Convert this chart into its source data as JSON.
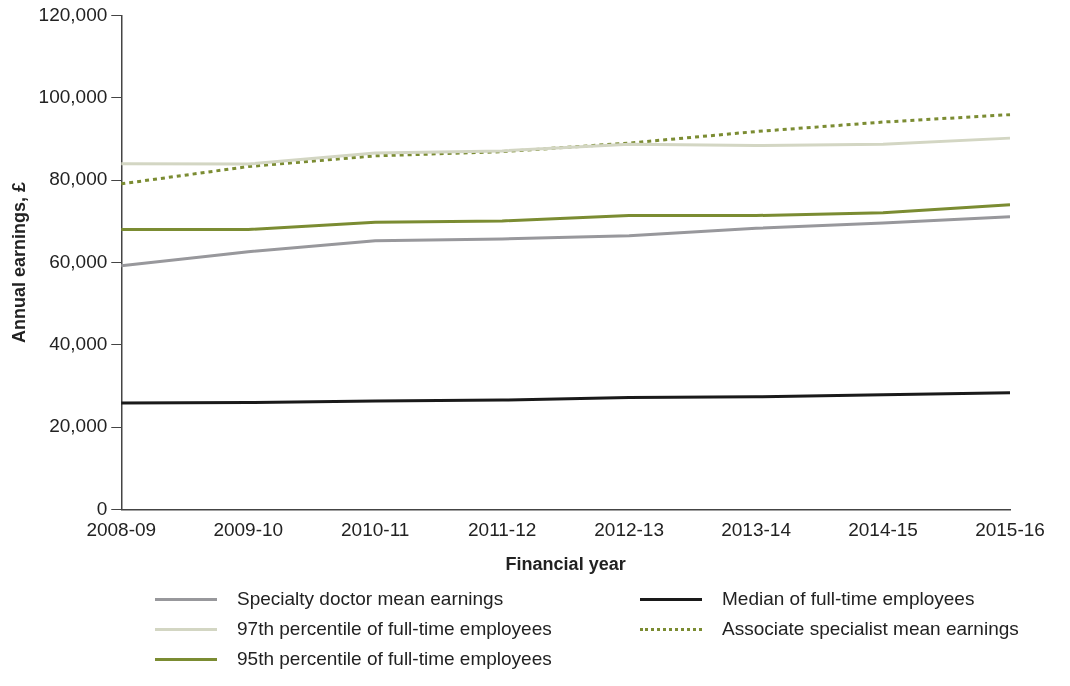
{
  "chart_data": {
    "type": "line",
    "xlabel": "Financial year",
    "ylabel": "Annual earnings, £",
    "categories": [
      "2008-09",
      "2009-10",
      "2010-11",
      "2011-12",
      "2012-13",
      "2013-14",
      "2014-15",
      "2015-16"
    ],
    "series": [
      {
        "name": "Specialty doctor mean earnings",
        "color": "#98989c",
        "values": [
          59200,
          62600,
          65300,
          65700,
          66500,
          68300,
          69600,
          71100
        ]
      },
      {
        "name": "97th percentile of full-time employees",
        "color": "#d3d6c3",
        "values": [
          84000,
          83900,
          86600,
          87100,
          88700,
          88400,
          88700,
          90200
        ]
      },
      {
        "name": "95th percentile of full-time employees",
        "color": "#7b8c32",
        "values": [
          68000,
          68000,
          69800,
          70100,
          71400,
          71400,
          72100,
          74000
        ]
      },
      {
        "name": "Median of full-time employees",
        "color": "#1a1a1a",
        "values": [
          25900,
          26000,
          26400,
          26600,
          27200,
          27400,
          27900,
          28400
        ]
      },
      {
        "name": "Associate specialist mean earnings",
        "color": "#7b8c32",
        "line_style": "dotted",
        "values": [
          79100,
          83300,
          85900,
          86900,
          89000,
          91800,
          94100,
          95900
        ]
      }
    ],
    "ylim": [
      0,
      120000
    ],
    "yticks": [
      {
        "value": 0,
        "label": "0"
      },
      {
        "value": 20000,
        "label": "20,000"
      },
      {
        "value": 40000,
        "label": "40,000"
      },
      {
        "value": 60000,
        "label": "60,000"
      },
      {
        "value": 80000,
        "label": "80,000"
      },
      {
        "value": 100000,
        "label": "100,000"
      },
      {
        "value": 120000,
        "label": "120,000"
      }
    ],
    "grid": false,
    "legend": "bottom",
    "marker": "none",
    "line_style": "solid"
  }
}
